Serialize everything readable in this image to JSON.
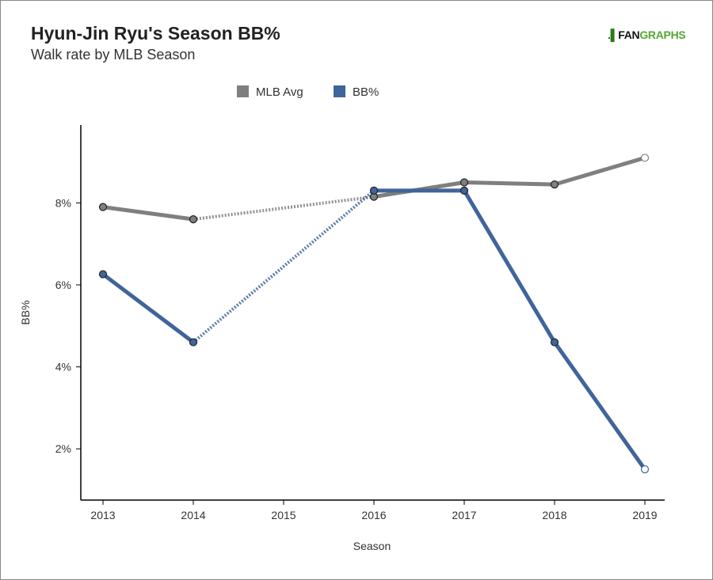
{
  "header": {
    "title": "Hyun-Jin Ryu's Season BB%",
    "subtitle": "Walk rate by MLB Season",
    "logo_mark": ".▌",
    "logo_a": "FAN",
    "logo_b": "GRAPHS"
  },
  "chart_data": {
    "type": "line",
    "title": "Hyun-Jin Ryu's Season BB%",
    "subtitle": "Walk rate by MLB Season",
    "xlabel": "Season",
    "ylabel": "BB%",
    "x": [
      2013,
      2014,
      2015,
      2016,
      2017,
      2018,
      2019
    ],
    "xticks": [
      "2013",
      "2014",
      "2015",
      "2016",
      "2017",
      "2018",
      "2019"
    ],
    "yticks": [
      2,
      4,
      6,
      8
    ],
    "ytick_labels": [
      "2%",
      "4%",
      "6%",
      "8%"
    ],
    "ylim": [
      0.75,
      9.9
    ],
    "legend": "top-center",
    "series": [
      {
        "name": "MLB Avg",
        "color": "#7f7f7f",
        "x": [
          2013,
          2014,
          2016,
          2017,
          2018,
          2019
        ],
        "values": [
          7.9,
          7.6,
          8.15,
          8.5,
          8.45,
          9.1
        ]
      },
      {
        "name": "BB%",
        "color": "#40649b",
        "x": [
          2013,
          2014,
          2016,
          2017,
          2018,
          2019
        ],
        "values": [
          6.26,
          4.6,
          8.3,
          8.3,
          4.6,
          1.5
        ]
      }
    ]
  }
}
